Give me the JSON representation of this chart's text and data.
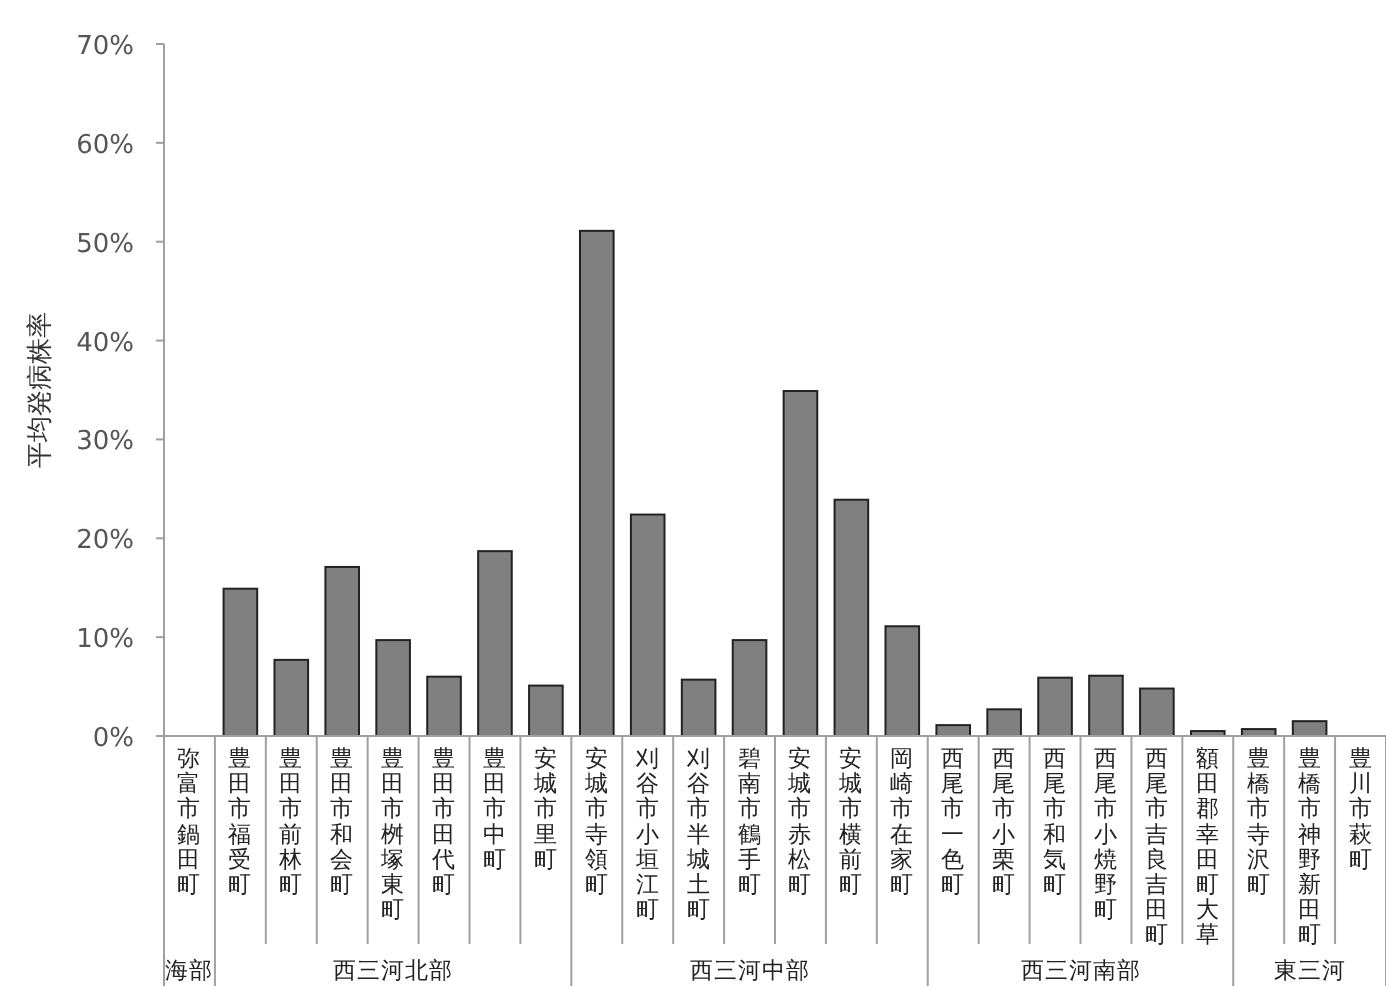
{
  "chart_data": {
    "type": "bar",
    "ylabel": "平均発病株率",
    "color": "#808080",
    "categories": [
      "弥富市鍋田町",
      "豊田市福受町",
      "豊田市前林町",
      "豊田市和会町",
      "豊田市桝塚東町",
      "豊田市田代町",
      "豊田市中町",
      "安城市里町",
      "安城市寺領町",
      "刈谷市小垣江町",
      "刈谷市半城土町",
      "碧南市鶴手町",
      "安城市赤松町",
      "安城市横前町",
      "岡崎市在家町",
      "西尾市一色町",
      "西尾市小栗町",
      "西尾市和気町",
      "西尾市小焼野町",
      "西尾市吉良吉田町",
      "額田郡幸田町大草",
      "豊橋市寺沢町",
      "豊橋市神野新田町",
      "豊川市萩町"
    ],
    "values": [
      0,
      14.9,
      7.7,
      17.1,
      9.7,
      6.0,
      18.7,
      5.1,
      51.1,
      22.4,
      5.7,
      9.7,
      34.9,
      23.9,
      11.1,
      1.1,
      2.7,
      5.9,
      6.1,
      4.8,
      0.5,
      0.7,
      1.5,
      0
    ],
    "ylim": [
      0,
      70
    ],
    "yticks": [
      {
        "value": 0,
        "label": "0%"
      },
      {
        "value": 10,
        "label": "10%"
      },
      {
        "value": 20,
        "label": "20%"
      },
      {
        "value": 30,
        "label": "30%"
      },
      {
        "value": 40,
        "label": "40%"
      },
      {
        "value": 50,
        "label": "50%"
      },
      {
        "value": 60,
        "label": "60%"
      },
      {
        "value": 70,
        "label": "70%"
      }
    ],
    "annotations": [
      "海部",
      "西三河北部",
      "西三河中部",
      "西三河南部",
      "東三河"
    ],
    "grid": false
  }
}
